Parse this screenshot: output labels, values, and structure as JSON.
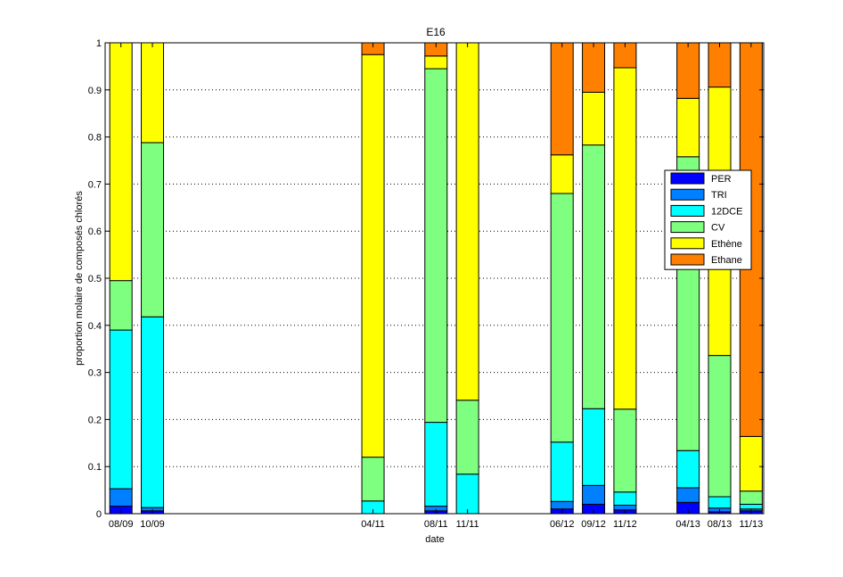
{
  "chart_data": {
    "type": "bar",
    "stacked": true,
    "title": "E16",
    "xlabel": "date",
    "ylabel": "proportion molaire de composés chlorés",
    "ylim": [
      0,
      1
    ],
    "yticks": [
      "0",
      "0.1",
      "0.2",
      "0.3",
      "0.4",
      "0.5",
      "0.6",
      "0.7",
      "0.8",
      "0.9",
      "1"
    ],
    "grid": "y-dotted",
    "legend_position": "right",
    "categories": [
      "08/09",
      "10/09",
      "04/11",
      "08/11",
      "11/11",
      "06/12",
      "09/12",
      "11/12",
      "04/13",
      "08/13",
      "11/13"
    ],
    "x": [
      0,
      1,
      8,
      10,
      11,
      14,
      15,
      16,
      18,
      19,
      20
    ],
    "series": [
      {
        "name": "PER",
        "color": "#0000ff",
        "values": [
          0.016,
          0.006,
          0.0,
          0.006,
          0.0,
          0.01,
          0.02,
          0.008,
          0.024,
          0.004,
          0.006
        ]
      },
      {
        "name": "TRI",
        "color": "#007fff",
        "values": [
          0.037,
          0.007,
          0.0,
          0.01,
          0.0,
          0.016,
          0.04,
          0.01,
          0.031,
          0.008,
          0.004
        ]
      },
      {
        "name": "12DCE",
        "color": "#00ffff",
        "values": [
          0.337,
          0.405,
          0.027,
          0.178,
          0.084,
          0.126,
          0.163,
          0.028,
          0.079,
          0.024,
          0.01
        ]
      },
      {
        "name": "CV",
        "color": "#7fff7f",
        "values": [
          0.105,
          0.37,
          0.093,
          0.751,
          0.157,
          0.528,
          0.56,
          0.176,
          0.624,
          0.3,
          0.028
        ]
      },
      {
        "name": "Ethène",
        "color": "#ffff00",
        "values": [
          0.505,
          0.212,
          0.855,
          0.027,
          0.759,
          0.082,
          0.112,
          0.725,
          0.124,
          0.57,
          0.116
        ]
      },
      {
        "name": "Ethane",
        "color": "#ff7f00",
        "values": [
          0.0,
          0.0,
          0.025,
          0.028,
          0.0,
          0.238,
          0.105,
          0.053,
          0.118,
          0.094,
          0.836
        ]
      }
    ]
  }
}
